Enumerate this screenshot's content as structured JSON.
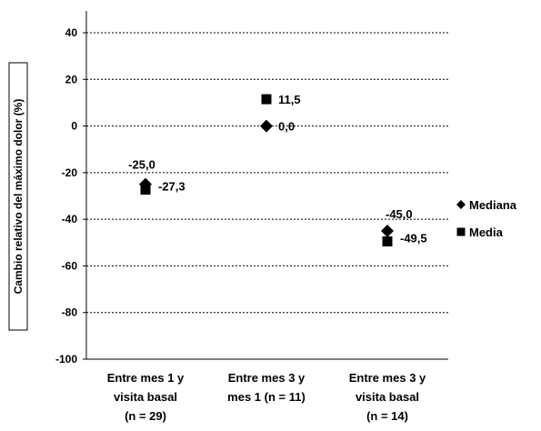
{
  "chart_data": {
    "type": "scatter",
    "ylabel": "Cambio relativo del máximo dolor (%)",
    "ylim": [
      -100,
      40
    ],
    "yticks": [
      40,
      20,
      0,
      -20,
      -40,
      -60,
      -80,
      -100
    ],
    "grid": true,
    "legend_position": "right",
    "categories": [
      [
        "Entre mes 1 y",
        "visita basal",
        "(n = 29)"
      ],
      [
        "Entre mes 3 y",
        "mes 1 (n = 11)"
      ],
      [
        "Entre mes 3 y",
        "visita basal",
        "(n = 14)"
      ]
    ],
    "series": [
      {
        "name": "Mediana",
        "marker": "diamond",
        "values": [
          -25.0,
          0.0,
          -45.0
        ],
        "labels": [
          "-25,0",
          "0,0",
          "-45,0"
        ]
      },
      {
        "name": "Media",
        "marker": "square",
        "values": [
          -27.3,
          11.5,
          -49.5
        ],
        "labels": [
          "-27,3",
          "11,5",
          "-49,5"
        ]
      }
    ],
    "colors": {
      "marker": "#000000",
      "grid": "#000000",
      "axis": "#000000"
    }
  }
}
